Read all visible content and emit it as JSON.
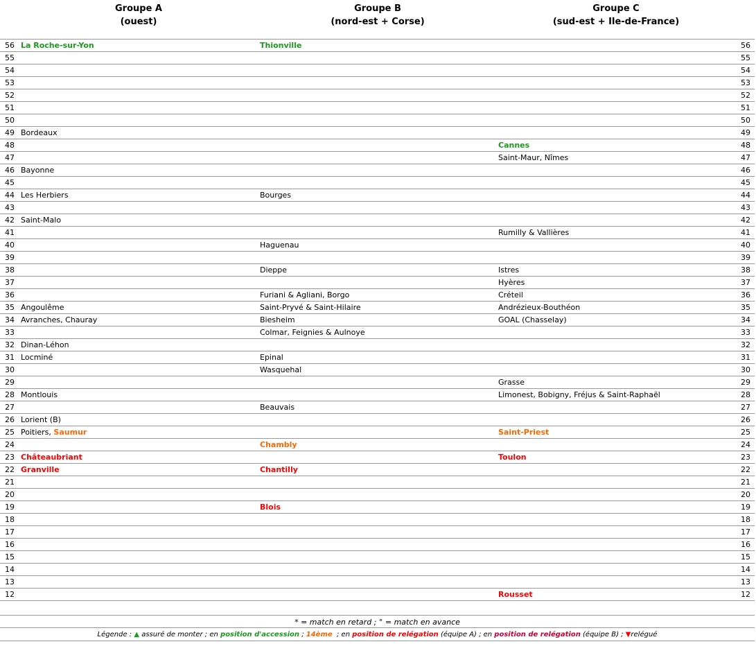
{
  "headers": [
    {
      "title": "Groupe A",
      "sub": "(ouest)"
    },
    {
      "title": "Groupe B",
      "sub": "(nord-est + Corse)"
    },
    {
      "title": "Groupe C",
      "sub": "(sud-est + Ile-de-France)"
    }
  ],
  "colors": {
    "accession": "#1a9a1a",
    "fourteenth": "#ff6600",
    "relegation_a": "#ff0000",
    "relegation_b": "#cc0033"
  },
  "rows": [
    {
      "pts": "56",
      "a": [
        [
          "La Roche-sur-Yon",
          "g"
        ]
      ],
      "b": [
        [
          "Thionville",
          "g"
        ]
      ],
      "c": []
    },
    {
      "pts": "55",
      "a": [],
      "b": [],
      "c": []
    },
    {
      "pts": "54",
      "a": [],
      "b": [],
      "c": []
    },
    {
      "pts": "53",
      "a": [],
      "b": [],
      "c": []
    },
    {
      "pts": "52",
      "a": [],
      "b": [],
      "c": []
    },
    {
      "pts": "51",
      "a": [],
      "b": [],
      "c": []
    },
    {
      "pts": "50",
      "a": [],
      "b": [],
      "c": []
    },
    {
      "pts": "49",
      "a": [
        [
          "Bordeaux",
          ""
        ]
      ],
      "b": [],
      "c": []
    },
    {
      "pts": "48",
      "a": [],
      "b": [],
      "c": [
        [
          "Cannes",
          "g"
        ]
      ]
    },
    {
      "pts": "47",
      "a": [],
      "b": [],
      "c": [
        [
          "Saint-Maur, Nîmes",
          ""
        ]
      ]
    },
    {
      "pts": "46",
      "a": [
        [
          "Bayonne",
          ""
        ]
      ],
      "b": [],
      "c": []
    },
    {
      "pts": "45",
      "a": [],
      "b": [],
      "c": []
    },
    {
      "pts": "44",
      "a": [
        [
          "Les Herbiers",
          ""
        ]
      ],
      "b": [
        [
          "Bourges",
          ""
        ]
      ],
      "c": []
    },
    {
      "pts": "43",
      "a": [],
      "b": [],
      "c": []
    },
    {
      "pts": "42",
      "a": [
        [
          "Saint-Malo",
          ""
        ]
      ],
      "b": [],
      "c": []
    },
    {
      "pts": "41",
      "a": [],
      "b": [],
      "c": [
        [
          "Rumilly & Vallières",
          ""
        ]
      ]
    },
    {
      "pts": "40",
      "a": [],
      "b": [
        [
          "Haguenau",
          ""
        ]
      ],
      "c": []
    },
    {
      "pts": "39",
      "a": [],
      "b": [],
      "c": []
    },
    {
      "pts": "38",
      "a": [],
      "b": [
        [
          "Dieppe",
          ""
        ]
      ],
      "c": [
        [
          "Istres",
          ""
        ]
      ]
    },
    {
      "pts": "37",
      "a": [],
      "b": [],
      "c": [
        [
          "Hyères",
          ""
        ]
      ]
    },
    {
      "pts": "36",
      "a": [],
      "b": [
        [
          "Furiani & Agliani, Borgo",
          ""
        ]
      ],
      "c": [
        [
          "Créteil",
          ""
        ]
      ]
    },
    {
      "pts": "35",
      "a": [
        [
          "Angoulême",
          ""
        ]
      ],
      "b": [
        [
          "Saint-Pryvé & Saint-Hilaire",
          ""
        ]
      ],
      "c": [
        [
          "Andrézieux-Bouthéon",
          ""
        ]
      ]
    },
    {
      "pts": "34",
      "a": [
        [
          "Avranches, Chauray",
          ""
        ]
      ],
      "b": [
        [
          "Biesheim",
          ""
        ]
      ],
      "c": [
        [
          "GOAL (Chasselay)",
          ""
        ]
      ]
    },
    {
      "pts": "33",
      "a": [],
      "b": [
        [
          "Colmar, Feignies & Aulnoye",
          ""
        ]
      ],
      "c": []
    },
    {
      "pts": "32",
      "a": [
        [
          "Dinan-Léhon",
          ""
        ]
      ],
      "b": [],
      "c": []
    },
    {
      "pts": "31",
      "a": [
        [
          "Locminé",
          ""
        ]
      ],
      "b": [
        [
          "Epinal",
          ""
        ]
      ],
      "c": []
    },
    {
      "pts": "30",
      "a": [],
      "b": [
        [
          "Wasquehal",
          ""
        ]
      ],
      "c": []
    },
    {
      "pts": "29",
      "a": [],
      "b": [],
      "c": [
        [
          "Grasse",
          ""
        ]
      ]
    },
    {
      "pts": "28",
      "a": [
        [
          "Montlouis",
          ""
        ]
      ],
      "b": [],
      "c": [
        [
          "Limonest, Bobigny, Fréjus & Saint-Raphaël",
          ""
        ]
      ]
    },
    {
      "pts": "27",
      "a": [],
      "b": [
        [
          "Beauvais",
          ""
        ]
      ],
      "c": []
    },
    {
      "pts": "26",
      "a": [
        [
          "Lorient (B)",
          ""
        ]
      ],
      "b": [],
      "c": []
    },
    {
      "pts": "25",
      "a": [
        [
          "Poitiers, ",
          ""
        ],
        [
          "Saumur",
          "o"
        ]
      ],
      "b": [],
      "c": [
        [
          "Saint-Priest",
          "o"
        ]
      ]
    },
    {
      "pts": "24",
      "a": [],
      "b": [
        [
          "Chambly",
          "o"
        ]
      ],
      "c": []
    },
    {
      "pts": "23",
      "a": [
        [
          "Châteaubriant",
          "r"
        ]
      ],
      "b": [],
      "c": [
        [
          "Toulon",
          "r"
        ]
      ]
    },
    {
      "pts": "22",
      "a": [
        [
          "Granville",
          "r"
        ]
      ],
      "b": [
        [
          "Chantilly",
          "r"
        ]
      ],
      "c": []
    },
    {
      "pts": "21",
      "a": [],
      "b": [],
      "c": []
    },
    {
      "pts": "20",
      "a": [],
      "b": [],
      "c": []
    },
    {
      "pts": "19",
      "a": [],
      "b": [
        [
          "Blois",
          "r"
        ]
      ],
      "c": []
    },
    {
      "pts": "18",
      "a": [],
      "b": [],
      "c": []
    },
    {
      "pts": "17",
      "a": [],
      "b": [],
      "c": []
    },
    {
      "pts": "16",
      "a": [],
      "b": [],
      "c": []
    },
    {
      "pts": "15",
      "a": [],
      "b": [],
      "c": []
    },
    {
      "pts": "14",
      "a": [],
      "b": [],
      "c": []
    },
    {
      "pts": "13",
      "a": [],
      "b": [],
      "c": []
    },
    {
      "pts": "12",
      "a": [],
      "b": [],
      "c": [
        [
          "Rousset",
          "r"
        ]
      ]
    }
  ],
  "footer": {
    "note": "* = match en retard ; ° = match en avance",
    "legend": [
      [
        "Légende : ",
        ""
      ],
      [
        "▲",
        "up"
      ],
      [
        " assuré de monter ; en ",
        ""
      ],
      [
        "position d'accession",
        "g"
      ],
      [
        " ; ",
        ""
      ],
      [
        "14ème",
        "o"
      ],
      [
        "  ; en ",
        ""
      ],
      [
        "position de relégation",
        "r"
      ],
      [
        " (équipe A) ; en ",
        ""
      ],
      [
        "position de relégation",
        "dr"
      ],
      [
        " (équipe B) ; ",
        ""
      ],
      [
        "▼",
        "dn"
      ],
      [
        "relégué",
        ""
      ]
    ]
  }
}
